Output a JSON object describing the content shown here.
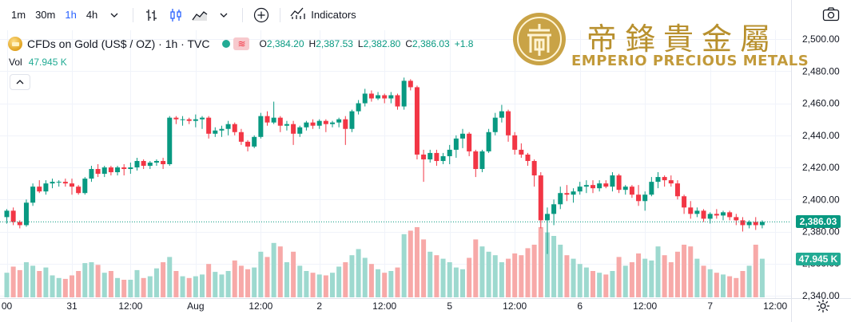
{
  "toolbar": {
    "timeframes": [
      "1m",
      "30m",
      "1h",
      "4h"
    ],
    "active_timeframe": "1h",
    "indicators_label": "Indicators"
  },
  "legend": {
    "symbol_title": "CFDs on Gold (US$ / OZ) · 1h · TVC",
    "status_icon": "≋",
    "ohlc": [
      {
        "k": "O",
        "v": "2,384.20"
      },
      {
        "k": "H",
        "v": "2,387.53"
      },
      {
        "k": "L",
        "v": "2,382.80"
      },
      {
        "k": "C",
        "v": "2,386.03"
      },
      {
        "k": "",
        "v": "+1.8"
      }
    ],
    "vol_label": "Vol",
    "vol_value": "47.945 K"
  },
  "watermark": {
    "chinese": "帝鋒貴金屬",
    "english": "EMPERIO PRECIOUS METALS"
  },
  "colors": {
    "up": "#089981",
    "down": "#f23645",
    "vol_up": "#9dd9cf",
    "vol_down": "#f7a9a8",
    "gold": "#c29a3a"
  },
  "chart_data": {
    "type": "candlestick",
    "y_ticks": [
      "2,500.00",
      "2,480.00",
      "2,460.00",
      "2,440.00",
      "2,420.00",
      "2,400.00",
      "2,380.00",
      "2,360.00",
      "2,340.00"
    ],
    "y_tick_values": [
      2500,
      2480,
      2460,
      2440,
      2420,
      2400,
      2380,
      2360,
      2340
    ],
    "ylim": [
      2338.5,
      2505.5
    ],
    "x_labels": [
      {
        "label": "00",
        "bar": 0
      },
      {
        "label": "31",
        "bar": 10
      },
      {
        "label": "12:00",
        "bar": 19
      },
      {
        "label": "Aug",
        "bar": 29
      },
      {
        "label": "12:00",
        "bar": 39
      },
      {
        "label": "2",
        "bar": 48
      },
      {
        "label": "12:00",
        "bar": 58
      },
      {
        "label": "5",
        "bar": 68
      },
      {
        "label": "12:00",
        "bar": 78
      },
      {
        "label": "6",
        "bar": 88
      },
      {
        "label": "12:00",
        "bar": 98
      },
      {
        "label": "7",
        "bar": 108
      },
      {
        "label": "12:00",
        "bar": 118
      }
    ],
    "last_price": 2386.03,
    "last_price_label": "2,386.03",
    "last_volume_label": "47.945 K",
    "volume_max": 80,
    "candles": [
      [
        2389,
        2394,
        2385,
        2393,
        28
      ],
      [
        2393,
        2395,
        2384,
        2386,
        35
      ],
      [
        2386,
        2387,
        2382,
        2384,
        31
      ],
      [
        2384,
        2400,
        2383,
        2398,
        40
      ],
      [
        2398,
        2410,
        2396,
        2408,
        36
      ],
      [
        2408,
        2412,
        2404,
        2405,
        30
      ],
      [
        2405,
        2412,
        2403,
        2410,
        34
      ],
      [
        2410,
        2413,
        2407,
        2411,
        25
      ],
      [
        2411,
        2412,
        2408,
        2411,
        22
      ],
      [
        2411,
        2413,
        2408,
        2410,
        21
      ],
      [
        2410,
        2413,
        2403,
        2408,
        25
      ],
      [
        2408,
        2409,
        2403,
        2404,
        30
      ],
      [
        2404,
        2414,
        2403,
        2413,
        39
      ],
      [
        2413,
        2421,
        2411,
        2419,
        40
      ],
      [
        2419,
        2422,
        2414,
        2416,
        37
      ],
      [
        2416,
        2421,
        2414,
        2420,
        28
      ],
      [
        2420,
        2421,
        2415,
        2417,
        30
      ],
      [
        2417,
        2421,
        2415,
        2420,
        22
      ],
      [
        2420,
        2422,
        2415,
        2419,
        20
      ],
      [
        2419,
        2423,
        2416,
        2420,
        20
      ],
      [
        2420,
        2426,
        2418,
        2424,
        31
      ],
      [
        2424,
        2425,
        2419,
        2421,
        22
      ],
      [
        2421,
        2424,
        2419,
        2423,
        24
      ],
      [
        2423,
        2425,
        2421,
        2424,
        33
      ],
      [
        2424,
        2426,
        2419,
        2422,
        40
      ],
      [
        2422,
        2452,
        2421,
        2451,
        46
      ],
      [
        2451,
        2452,
        2447,
        2450,
        30
      ],
      [
        2450,
        2452,
        2446,
        2450,
        24
      ],
      [
        2450,
        2451,
        2447,
        2449,
        22
      ],
      [
        2449,
        2453,
        2445,
        2450,
        24
      ],
      [
        2450,
        2452,
        2444,
        2451,
        26
      ],
      [
        2451,
        2452,
        2438,
        2441,
        38
      ],
      [
        2441,
        2445,
        2439,
        2443,
        29
      ],
      [
        2443,
        2446,
        2439,
        2444,
        26
      ],
      [
        2444,
        2449,
        2440,
        2447,
        30
      ],
      [
        2447,
        2448,
        2440,
        2442,
        42
      ],
      [
        2442,
        2444,
        2434,
        2436,
        36
      ],
      [
        2436,
        2437,
        2430,
        2433,
        32
      ],
      [
        2433,
        2440,
        2432,
        2439,
        34
      ],
      [
        2439,
        2454,
        2438,
        2452,
        52
      ],
      [
        2452,
        2455,
        2446,
        2448,
        46
      ],
      [
        2448,
        2461,
        2447,
        2451,
        62
      ],
      [
        2451,
        2452,
        2442,
        2446,
        58
      ],
      [
        2446,
        2449,
        2443,
        2447,
        40
      ],
      [
        2447,
        2449,
        2434,
        2441,
        52
      ],
      [
        2441,
        2446,
        2439,
        2445,
        36
      ],
      [
        2445,
        2449,
        2443,
        2448,
        30
      ],
      [
        2448,
        2450,
        2444,
        2446,
        28
      ],
      [
        2446,
        2450,
        2444,
        2449,
        26
      ],
      [
        2449,
        2450,
        2442,
        2447,
        25
      ],
      [
        2447,
        2449,
        2445,
        2448,
        28
      ],
      [
        2448,
        2451,
        2445,
        2450,
        35
      ],
      [
        2450,
        2452,
        2434,
        2444,
        40
      ],
      [
        2444,
        2456,
        2442,
        2455,
        48
      ],
      [
        2455,
        2462,
        2453,
        2460,
        55
      ],
      [
        2460,
        2469,
        2458,
        2466,
        45
      ],
      [
        2466,
        2468,
        2461,
        2463,
        38
      ],
      [
        2463,
        2467,
        2462,
        2465,
        32
      ],
      [
        2465,
        2466,
        2460,
        2463,
        28
      ],
      [
        2463,
        2467,
        2460,
        2465,
        30
      ],
      [
        2465,
        2466,
        2456,
        2458,
        34
      ],
      [
        2458,
        2476,
        2456,
        2474,
        72
      ],
      [
        2474,
        2475,
        2468,
        2470,
        76
      ],
      [
        2470,
        2471,
        2425,
        2428,
        80
      ],
      [
        2428,
        2431,
        2411,
        2425,
        66
      ],
      [
        2425,
        2431,
        2423,
        2429,
        52
      ],
      [
        2429,
        2431,
        2421,
        2424,
        48
      ],
      [
        2424,
        2429,
        2422,
        2427,
        44
      ],
      [
        2427,
        2434,
        2422,
        2431,
        40
      ],
      [
        2431,
        2440,
        2426,
        2438,
        34
      ],
      [
        2438,
        2444,
        2432,
        2441,
        32
      ],
      [
        2441,
        2442,
        2427,
        2430,
        45
      ],
      [
        2430,
        2431,
        2414,
        2419,
        66
      ],
      [
        2419,
        2431,
        2417,
        2430,
        58
      ],
      [
        2430,
        2444,
        2429,
        2442,
        52
      ],
      [
        2442,
        2454,
        2440,
        2451,
        48
      ],
      [
        2451,
        2459,
        2448,
        2455,
        40
      ],
      [
        2455,
        2456,
        2436,
        2440,
        44
      ],
      [
        2440,
        2442,
        2428,
        2431,
        50
      ],
      [
        2431,
        2435,
        2426,
        2428,
        48
      ],
      [
        2428,
        2429,
        2421,
        2424,
        56
      ],
      [
        2424,
        2425,
        2408,
        2415,
        60
      ],
      [
        2415,
        2417,
        2382,
        2387,
        80
      ],
      [
        2387,
        2395,
        2366,
        2391,
        74
      ],
      [
        2391,
        2400,
        2384,
        2397,
        70
      ],
      [
        2397,
        2408,
        2394,
        2404,
        60
      ],
      [
        2404,
        2409,
        2399,
        2403,
        48
      ],
      [
        2403,
        2407,
        2398,
        2405,
        44
      ],
      [
        2405,
        2411,
        2403,
        2408,
        38
      ],
      [
        2408,
        2412,
        2404,
        2409,
        34
      ],
      [
        2409,
        2412,
        2404,
        2407,
        30
      ],
      [
        2407,
        2412,
        2405,
        2410,
        28
      ],
      [
        2410,
        2412,
        2407,
        2408,
        26
      ],
      [
        2408,
        2417,
        2405,
        2415,
        30
      ],
      [
        2415,
        2416,
        2404,
        2406,
        46
      ],
      [
        2406,
        2409,
        2403,
        2408,
        36
      ],
      [
        2408,
        2409,
        2401,
        2403,
        40
      ],
      [
        2403,
        2409,
        2396,
        2399,
        50
      ],
      [
        2399,
        2405,
        2393,
        2403,
        44
      ],
      [
        2403,
        2414,
        2402,
        2411,
        42
      ],
      [
        2411,
        2417,
        2407,
        2414,
        58
      ],
      [
        2414,
        2415,
        2408,
        2412,
        48
      ],
      [
        2412,
        2415,
        2408,
        2410,
        40
      ],
      [
        2410,
        2412,
        2400,
        2402,
        52
      ],
      [
        2402,
        2403,
        2391,
        2395,
        60
      ],
      [
        2395,
        2399,
        2388,
        2391,
        58
      ],
      [
        2391,
        2395,
        2389,
        2393,
        44
      ],
      [
        2393,
        2394,
        2386,
        2388,
        36
      ],
      [
        2388,
        2392,
        2385,
        2391,
        32
      ],
      [
        2391,
        2394,
        2388,
        2390,
        28
      ],
      [
        2390,
        2393,
        2387,
        2392,
        26
      ],
      [
        2392,
        2393,
        2387,
        2389,
        24
      ],
      [
        2389,
        2391,
        2384,
        2387,
        22
      ],
      [
        2387,
        2389,
        2380,
        2384,
        30
      ],
      [
        2384,
        2387,
        2382,
        2386,
        36
      ],
      [
        2386,
        2389,
        2381,
        2384,
        60
      ],
      [
        2384,
        2387,
        2382,
        2386,
        44
      ]
    ]
  }
}
